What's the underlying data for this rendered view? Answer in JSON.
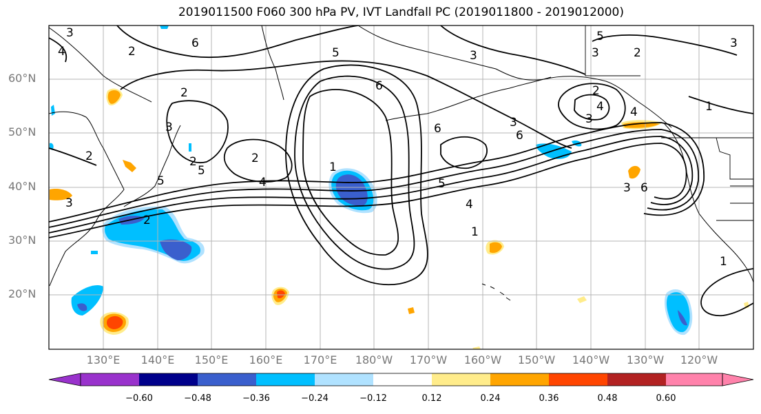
{
  "title": "2019011500 F060 300 hPa PV, IVT Landfall PC (2019011800 - 2019012000)",
  "lat_labels": [
    "60°N",
    "50°N",
    "40°N",
    "30°N",
    "20°N"
  ],
  "lon_labels": [
    "130°E",
    "140°E",
    "150°E",
    "160°E",
    "170°E",
    "180°W",
    "170°W",
    "160°W",
    "150°W",
    "140°W",
    "130°W",
    "120°W"
  ],
  "colorbar": {
    "colors": [
      "#9932cc",
      "#00008b",
      "#3a5fcd",
      "#00bfff",
      "#b0e2ff",
      "#ffffff",
      "#ffec8b",
      "#ffa500",
      "#ff4500",
      "#b22222",
      "#ff82ab"
    ],
    "tick_labels": [
      "−0.60",
      "−0.48",
      "−0.36",
      "−0.24",
      "−0.12",
      "0.12",
      "0.24",
      "0.36",
      "0.48",
      "0.60"
    ]
  },
  "contour_labels": [
    "3",
    "4",
    "6",
    "5",
    "3",
    "2",
    "5",
    "3",
    "2",
    "2",
    "6",
    "5",
    "2",
    "2",
    "4",
    "6",
    "1",
    "5",
    "4",
    "1",
    "3",
    "6",
    "3",
    "1",
    "1",
    "5",
    "3",
    "6",
    "4",
    "2",
    "2",
    "3",
    "2",
    "4",
    "3",
    "3"
  ],
  "legend_colors": {
    "neg_dark": "#3a5fcd",
    "neg_mid": "#00bfff",
    "neg_light": "#b0e2ff",
    "pos_light": "#ffec8b",
    "pos_mid": "#ffa500",
    "pos_dark": "#ff4500"
  }
}
